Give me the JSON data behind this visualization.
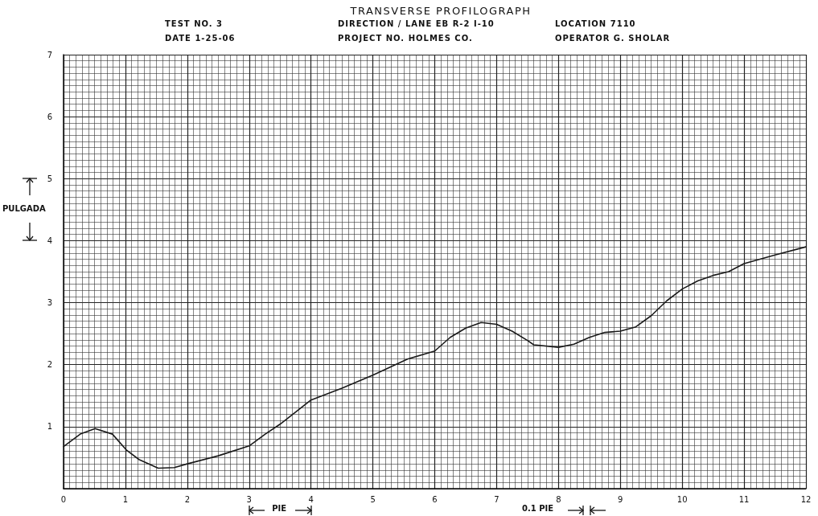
{
  "chart_data": {
    "type": "line",
    "title": "TRANSVERSE PROFILOGRAPH",
    "annotations": [
      "TEST NO. 3",
      "DIRECTION / LANE EB R-2 I-10",
      "LOCATION 7110",
      "DATE 1-25-06",
      "PROJECT NO. HOLMES CO.",
      "OPERATOR G. SHOLAR",
      "PULGADA",
      "PIE",
      "0.1 PIE"
    ],
    "x": [
      0,
      0.27,
      0.51,
      0.79,
      1.02,
      1.22,
      1.53,
      1.79,
      2.0,
      2.5,
      3.0,
      3.26,
      3.5,
      4.0,
      4.5,
      5.0,
      5.56,
      6.0,
      6.25,
      6.5,
      6.75,
      7.0,
      7.25,
      7.5,
      7.6,
      8.0,
      8.25,
      8.5,
      8.75,
      9.0,
      9.25,
      9.5,
      9.75,
      10.0,
      10.25,
      10.5,
      10.75,
      11.0,
      11.5,
      12.0
    ],
    "series": [
      {
        "color": "#1a1a1a",
        "values": [
          0.68,
          0.88,
          0.97,
          0.88,
          0.62,
          0.47,
          0.33,
          0.34,
          0.4,
          0.53,
          0.69,
          0.88,
          1.04,
          1.43,
          1.62,
          1.83,
          2.09,
          2.22,
          2.44,
          2.59,
          2.68,
          2.65,
          2.54,
          2.39,
          2.32,
          2.28,
          2.33,
          2.44,
          2.52,
          2.54,
          2.61,
          2.79,
          3.03,
          3.22,
          3.35,
          3.44,
          3.5,
          3.63,
          3.77,
          3.9
        ]
      }
    ],
    "xlim": [
      0,
      12
    ],
    "xticks": [
      0,
      1,
      2,
      3,
      4,
      5,
      6,
      7,
      8,
      9,
      10,
      11,
      12
    ],
    "ylim": [
      0,
      7
    ],
    "yticks": [
      {
        "value": 0,
        "label": null
      },
      1,
      2,
      3,
      4,
      5,
      6,
      7
    ],
    "grid": true,
    "marker": "none",
    "line_style": "solid"
  }
}
